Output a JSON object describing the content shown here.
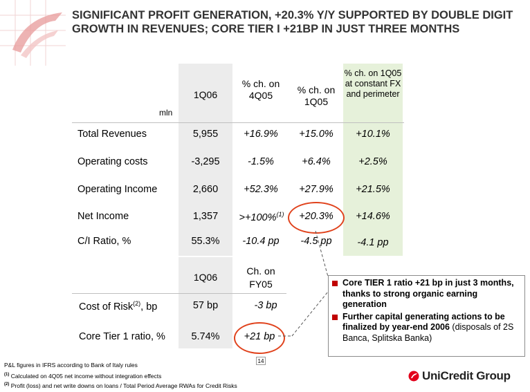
{
  "title": "SIGNIFICANT PROFIT GENERATION, +20.3% Y/Y SUPPORTED BY DOUBLE DIGIT GROWTH IN REVENUES; CORE TIER I +21BP IN JUST THREE MONTHS",
  "unit_label": "mln",
  "headers": [
    "1Q06",
    "% ch. on 4Q05",
    "% ch. on 1Q05",
    "% ch. on 1Q05 at constant FX and perimeter"
  ],
  "rows": [
    {
      "label": "Total Revenues",
      "values": [
        "5,955",
        "+16.9%",
        "+15.0%",
        "+10.1%"
      ]
    },
    {
      "label": "Operating costs",
      "values": [
        "-3,295",
        "-1.5%",
        "+6.4%",
        "+2.5%"
      ]
    },
    {
      "label": "Operating Income",
      "values": [
        "2,660",
        "+52.3%",
        "+27.9%",
        "+21.5%"
      ]
    },
    {
      "label": "Net Income",
      "values": [
        "1,357",
        ">+100%",
        "+20.3%",
        "+14.6%"
      ],
      "note_sup": "(1)"
    },
    {
      "label": "C/I Ratio, %",
      "values": [
        "55.3%",
        "-10.4 pp",
        "-4.5 pp",
        "-4.1 pp"
      ]
    }
  ],
  "headers2": [
    "1Q06",
    "Ch. on FY05"
  ],
  "rows2": [
    {
      "label": "Cost of Risk",
      "sup": "(2)",
      "label_suffix": ", bp",
      "values": [
        "57 bp",
        "-3 bp"
      ]
    },
    {
      "label": "Core Tier 1 ratio, %",
      "values": [
        "5.74%",
        "+21 bp"
      ]
    }
  ],
  "bullets": [
    {
      "text": "Core TIER 1 ratio +21 bp in just 3 months, thanks to strong organic earning generation"
    },
    {
      "text": "Further capital generating actions to be finalized by year-end 2006",
      "text_normal": " (disposals of 2S Banca, Splitska Banka)"
    }
  ],
  "footnotes": {
    "main": "P&L figures in IFRS according to Bank of Italy rules",
    "n1_marker": "(1)",
    "n1": "Calculated on 4Q05 net income without integration effects",
    "n2_marker": "(2)",
    "n2": "Profit (loss) and net write downs on loans / Total Period Average RWAs for Credit Risks"
  },
  "page_number": "14",
  "brand": "UniCredit Group",
  "colors": {
    "accent": "#e0421c",
    "bullet": "#c00000",
    "highlight_col": "#e6f1da",
    "grey_col": "#ececec"
  }
}
